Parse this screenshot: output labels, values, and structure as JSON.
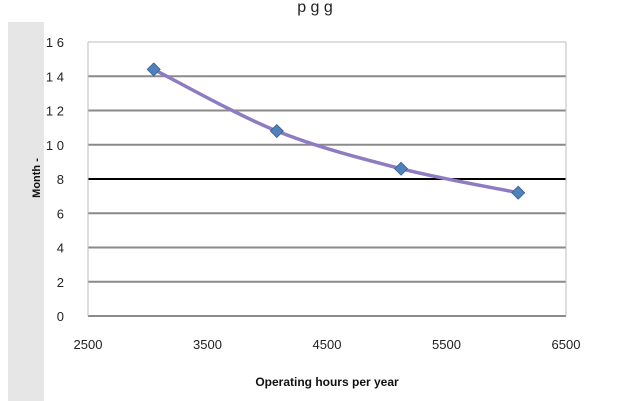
{
  "chart_data": {
    "type": "line",
    "title_partial": "p           g           g",
    "xlabel": "Operating hours per year",
    "ylabel": "Month -",
    "xlim": [
      2500,
      6500
    ],
    "ylim": [
      0,
      16
    ],
    "xticks": [
      "2500",
      "3500",
      "4500",
      "5500",
      "6500"
    ],
    "yticks": [
      "0",
      "2",
      "4",
      "6",
      "8",
      "10",
      "12",
      "14",
      "16"
    ],
    "ytick_display": [
      "0",
      "2",
      "4",
      "6",
      "8",
      "1 0",
      "1 2",
      "1 4",
      "1 6"
    ],
    "grid": "horizontal",
    "series": [
      {
        "x": [
          3050,
          4080,
          5120,
          6100
        ],
        "y": [
          14.4,
          10.8,
          8.6,
          7.2
        ]
      }
    ],
    "line_color": "#8E7CC3",
    "marker_color": "#4F81BD",
    "marker": "diamond"
  }
}
